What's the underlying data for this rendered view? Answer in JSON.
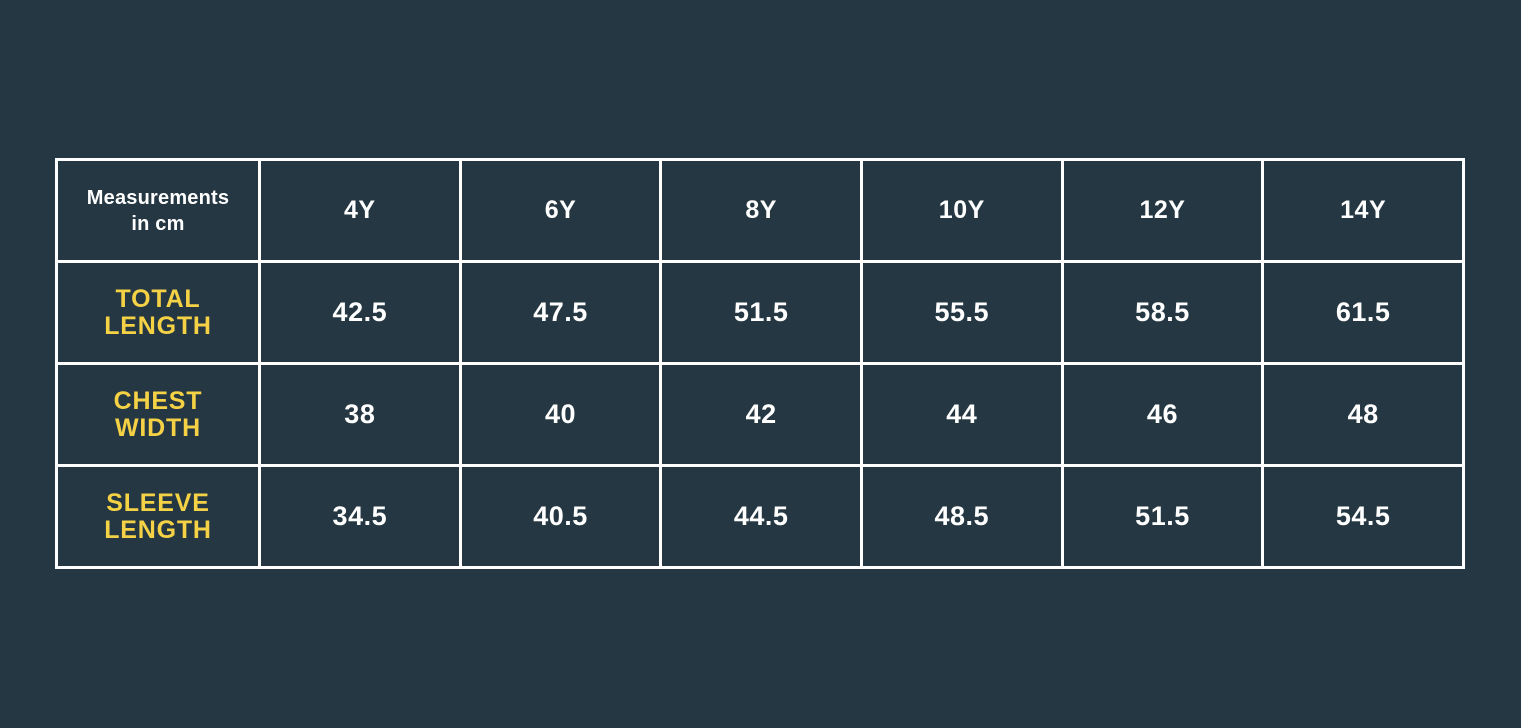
{
  "page": {
    "background_color": "#243742",
    "border_color": "#FFFFFF",
    "value_text_color": "#FFFFFF",
    "label_text_color": "#F5D145"
  },
  "table": {
    "corner_lines": [
      "Measurements",
      "in cm"
    ],
    "size_columns": [
      "4Y",
      "6Y",
      "8Y",
      "10Y",
      "12Y",
      "14Y"
    ],
    "rows": [
      {
        "label_lines": [
          "TOTAL",
          "LENGTH"
        ],
        "values": [
          "42.5",
          "47.5",
          "51.5",
          "55.5",
          "58.5",
          "61.5"
        ]
      },
      {
        "label_lines": [
          "CHEST",
          "WIDTH"
        ],
        "values": [
          "38",
          "40",
          "42",
          "44",
          "46",
          "48"
        ]
      },
      {
        "label_lines": [
          "SLEEVE",
          "LENGTH"
        ],
        "values": [
          "34.5",
          "40.5",
          "44.5",
          "48.5",
          "51.5",
          "54.5"
        ]
      }
    ]
  },
  "chart_data": {
    "type": "table",
    "title": "Measurements in cm",
    "columns": [
      "Measurements in cm",
      "4Y",
      "6Y",
      "8Y",
      "10Y",
      "12Y",
      "14Y"
    ],
    "rows": [
      [
        "TOTAL LENGTH",
        42.5,
        47.5,
        51.5,
        55.5,
        58.5,
        61.5
      ],
      [
        "CHEST WIDTH",
        38,
        40,
        42,
        44,
        46,
        48
      ],
      [
        "SLEEVE LENGTH",
        34.5,
        40.5,
        44.5,
        48.5,
        51.5,
        54.5
      ]
    ],
    "units": "cm",
    "legend_position": "none",
    "grid": true
  }
}
